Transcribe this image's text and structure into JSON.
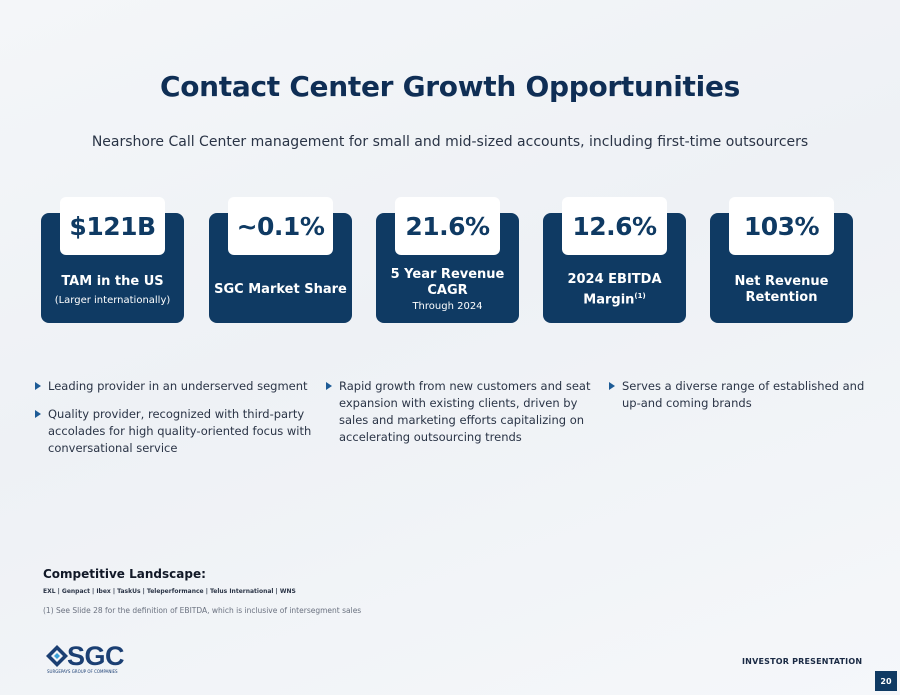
{
  "title": "Contact Center Growth Opportunities",
  "subtitle": "Nearshore Call Center management for small and mid-sized accounts, including first-time outsourcers",
  "metrics": [
    {
      "value": "$121B",
      "label": "TAM in the US",
      "sublabel": "(Larger internationally)"
    },
    {
      "value": "~0.1%",
      "label": "SGC Market Share"
    },
    {
      "value": "21.6%",
      "label_line1": "5 Year Revenue",
      "label_line2": "CAGR",
      "sublabel": "Through 2024"
    },
    {
      "value": "12.6%",
      "label_line1": "2024 EBITDA",
      "label_line2": "Margin",
      "footnote_mark": "(1)"
    },
    {
      "value": "103%",
      "label_line1": "Net Revenue",
      "label_line2": "Retention"
    }
  ],
  "bullets": {
    "col1": [
      "Leading provider in an underserved segment",
      "Quality provider, recognized with third-party accolades for high quality-oriented focus with conversational service"
    ],
    "col2": [
      "Rapid growth from new customers and seat expansion with existing clients, driven by sales and marketing efforts capitalizing on accelerating outsourcing trends"
    ],
    "col3": [
      "Serves a diverse range of established and up-and coming brands"
    ]
  },
  "competitive": {
    "title": "Competitive Landscape:",
    "list": "EXL | Genpact | Ibex | TaskUs | Teleperformance | Telus International | WNS"
  },
  "footnote": "(1)   See Slide 28 for the definition of EBITDA, which is inclusive of intersegment sales",
  "footer": {
    "logo_text": "SGC",
    "logo_tagline": "SURGEPAYS GROUP OF COMPANIES",
    "label": "INVESTOR PRESENTATION",
    "page": "20"
  },
  "colors": {
    "navy": "#0f3a63",
    "title": "#0f2e55",
    "accent": "#1d5b96"
  }
}
